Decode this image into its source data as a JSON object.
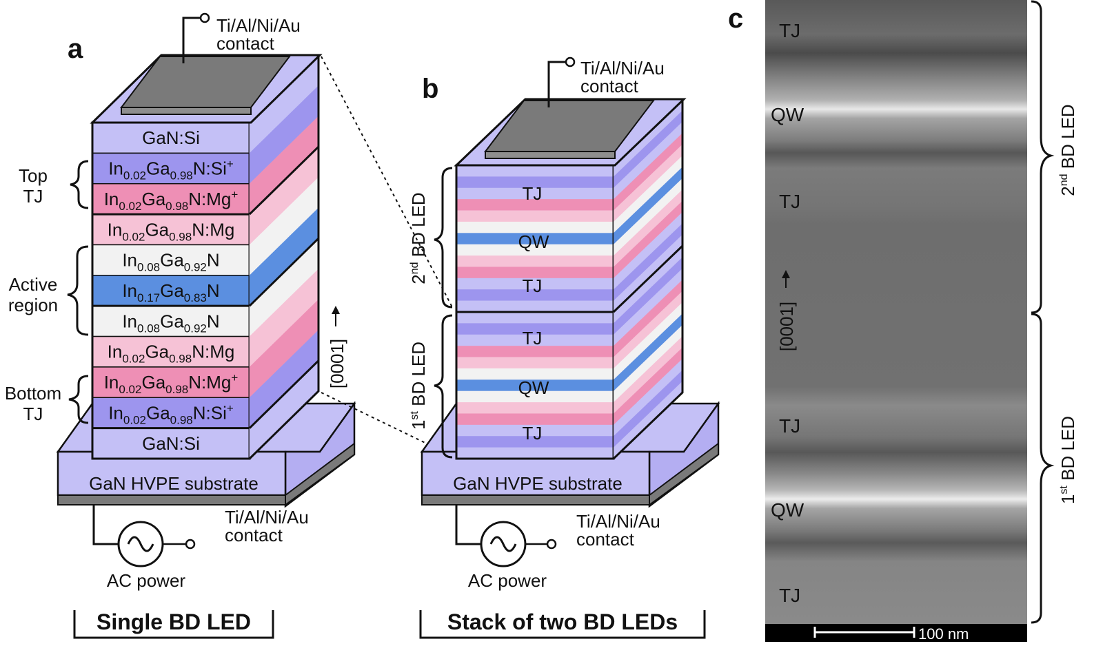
{
  "panels": {
    "a": {
      "letter": "a",
      "contact_top": "Ti/Al/Ni/Au",
      "contact_top_2": "contact",
      "layers": [
        {
          "pre": "GaN:Si",
          "s1": "",
          "mid": "",
          "s2": "",
          "suf": "",
          "sup": "",
          "color": "#c4c0f6",
          "side": "#c4c0f6"
        },
        {
          "pre": "In",
          "s1": "0.02",
          "mid": "Ga",
          "s2": "0.98",
          "suf": "N:Si",
          "sup": "+",
          "color": "#9d95ee",
          "side": "#9d95ee"
        },
        {
          "pre": "In",
          "s1": "0.02",
          "mid": "Ga",
          "s2": "0.98",
          "suf": "N:Mg",
          "sup": "+",
          "color": "#ee8fb5",
          "side": "#ee8fb5"
        },
        {
          "pre": "In",
          "s1": "0.02",
          "mid": "Ga",
          "s2": "0.98",
          "suf": "N:Mg",
          "sup": "",
          "color": "#f6c2d6",
          "side": "#f6c2d6"
        },
        {
          "pre": "In",
          "s1": "0.08",
          "mid": "Ga",
          "s2": "0.92",
          "suf": "N",
          "sup": "",
          "color": "#f2f2f2",
          "side": "#f2f2f2"
        },
        {
          "pre": "In",
          "s1": "0.17",
          "mid": "Ga",
          "s2": "0.83",
          "suf": "N",
          "sup": "",
          "color": "#5b8fe0",
          "side": "#5b8fe0"
        },
        {
          "pre": "In",
          "s1": "0.08",
          "mid": "Ga",
          "s2": "0.92",
          "suf": "N",
          "sup": "",
          "color": "#f2f2f2",
          "side": "#f2f2f2"
        },
        {
          "pre": "In",
          "s1": "0.02",
          "mid": "Ga",
          "s2": "0.98",
          "suf": "N:Mg",
          "sup": "",
          "color": "#f6c2d6",
          "side": "#f6c2d6"
        },
        {
          "pre": "In",
          "s1": "0.02",
          "mid": "Ga",
          "s2": "0.98",
          "suf": "N:Mg",
          "sup": "+",
          "color": "#ee8fb5",
          "side": "#ee8fb5"
        },
        {
          "pre": "In",
          "s1": "0.02",
          "mid": "Ga",
          "s2": "0.98",
          "suf": "N:Si",
          "sup": "+",
          "color": "#9d95ee",
          "side": "#9d95ee"
        },
        {
          "pre": "GaN:Si",
          "s1": "",
          "mid": "",
          "s2": "",
          "suf": "",
          "sup": "",
          "color": "#c4c0f6",
          "side": "#c4c0f6"
        }
      ],
      "brace_top": [
        "Top",
        "TJ"
      ],
      "brace_active": [
        "Active",
        "region"
      ],
      "brace_bottom": [
        "Bottom",
        "TJ"
      ],
      "direction": "[0001]",
      "substrate": "GaN HVPE substrate",
      "contact_bottom": "Ti/Al/Ni/Au",
      "contact_bottom_2": "contact",
      "power": "AC power",
      "caption": "Single BD LED"
    },
    "b": {
      "letter": "b",
      "contact_top": "Ti/Al/Ni/Au",
      "contact_top_2": "contact",
      "labels": [
        "TJ",
        "QW",
        "TJ",
        "TJ",
        "QW",
        "TJ"
      ],
      "led2_ord": "2",
      "led2_sup": "nd",
      "led2_rest": " BD LED",
      "led1_ord": "1",
      "led1_sup": "st",
      "led1_rest": " BD LED",
      "substrate": "GaN HVPE substrate",
      "contact_bottom": "Ti/Al/Ni/Au",
      "contact_bottom_2": "contact",
      "power": "AC power",
      "caption": "Stack of two BD LEDs"
    },
    "c": {
      "letter": "c",
      "labels": [
        "TJ",
        "QW",
        "TJ",
        "TJ",
        "QW",
        "TJ"
      ],
      "direction": "[0001]",
      "scale": "100 nm",
      "led2_ord": "2",
      "led2_sup": "nd",
      "led2_rest": " BD LED",
      "led1_ord": "1",
      "led1_sup": "st",
      "led1_rest": " BD LED"
    }
  },
  "colors": {
    "gan": "#c4c0f6",
    "si_plus": "#9d95ee",
    "mg_plus": "#ee8fb5",
    "mg": "#f6c2d6",
    "ingan": "#f2f2f2",
    "qw": "#5b8fe0",
    "contact": "#7a7a7a",
    "sem_bg": "#7b7b7b"
  }
}
